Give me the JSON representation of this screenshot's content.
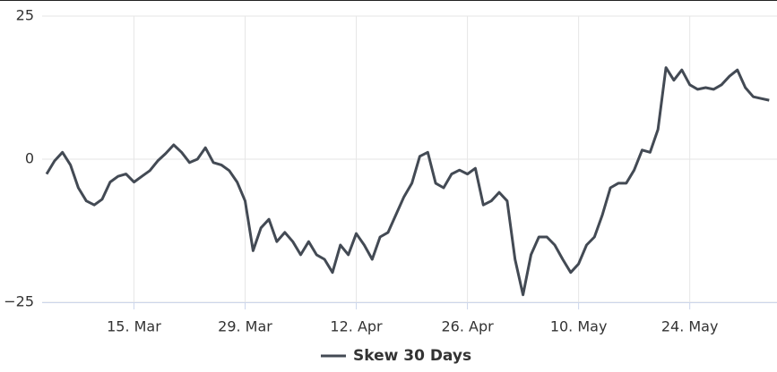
{
  "chart_data": {
    "type": "line",
    "x": [
      "4. Mar",
      "5. Mar",
      "6. Mar",
      "7. Mar",
      "8. Mar",
      "9. Mar",
      "10. Mar",
      "11. Mar",
      "12. Mar",
      "13. Mar",
      "14. Mar",
      "15. Mar",
      "16. Mar",
      "17. Mar",
      "18. Mar",
      "19. Mar",
      "20. Mar",
      "21. Mar",
      "22. Mar",
      "23. Mar",
      "24. Mar",
      "25. Mar",
      "26. Mar",
      "27. Mar",
      "28. Mar",
      "29. Mar",
      "30. Mar",
      "31. Mar",
      "1. Apr",
      "2. Apr",
      "3. Apr",
      "4. Apr",
      "5. Apr",
      "6. Apr",
      "7. Apr",
      "8. Apr",
      "9. Apr",
      "10. Apr",
      "11. Apr",
      "12. Apr",
      "13. Apr",
      "14. Apr",
      "15. Apr",
      "16. Apr",
      "17. Apr",
      "18. Apr",
      "19. Apr",
      "20. Apr",
      "21. Apr",
      "22. Apr",
      "23. Apr",
      "24. Apr",
      "25. Apr",
      "26. Apr",
      "27. Apr",
      "28. Apr",
      "29. Apr",
      "30. Apr",
      "1. May",
      "2. May",
      "3. May",
      "4. May",
      "5. May",
      "6. May",
      "7. May",
      "8. May",
      "9. May",
      "10. May",
      "11. May",
      "12. May",
      "13. May",
      "14. May",
      "15. May",
      "16. May",
      "17. May",
      "18. May",
      "19. May",
      "20. May",
      "21. May",
      "22. May",
      "23. May",
      "24. May",
      "25. May",
      "26. May",
      "27. May",
      "28. May",
      "29. May",
      "30. May",
      "31. May",
      "1. Jun",
      "2. Jun",
      "3. Jun"
    ],
    "series": [
      {
        "name": "Skew 30 Days",
        "color": "#434a54",
        "values": [
          -2.6,
          -0.3,
          1.2,
          -1,
          -5,
          -7.3,
          -8,
          -7,
          -4,
          -3,
          -2.6,
          -4,
          -3,
          -2,
          -0.3,
          1,
          2.5,
          1.2,
          -0.6,
          0,
          2,
          -0.6,
          -1,
          -2,
          -4,
          -7.3,
          -16,
          -12,
          -10.5,
          -14.4,
          -12.8,
          -14.4,
          -16.7,
          -14.4,
          -16.7,
          -17.5,
          -19.8,
          -15,
          -16.7,
          -13,
          -15,
          -17.5,
          -13.6,
          -12.8,
          -9.7,
          -6.6,
          -4.2,
          0.5,
          1.2,
          -4.2,
          -5,
          -2.6,
          -1.9,
          -2.6,
          -1.6,
          -8,
          -7.3,
          -5.8,
          -7.3,
          -17.5,
          -23.7,
          -16.7,
          -13.6,
          -13.6,
          -15,
          -17.5,
          -19.8,
          -18.3,
          -15,
          -13.6,
          -9.7,
          -5,
          -4.2,
          -4.2,
          -1.9,
          1.6,
          1.2,
          5.2,
          16,
          13.8,
          15.6,
          13,
          12.2,
          12.5,
          12.2,
          13,
          14.5,
          15.6,
          12.5,
          10.9,
          10.6,
          10.3
        ]
      }
    ],
    "xticks": [
      "15. Mar",
      "29. Mar",
      "12. Apr",
      "26. Apr",
      "10. May",
      "24. May"
    ],
    "ylim": [
      -25,
      25
    ],
    "yticks": [
      {
        "value": -25,
        "label": "−25"
      },
      0,
      25
    ],
    "grid": true
  }
}
